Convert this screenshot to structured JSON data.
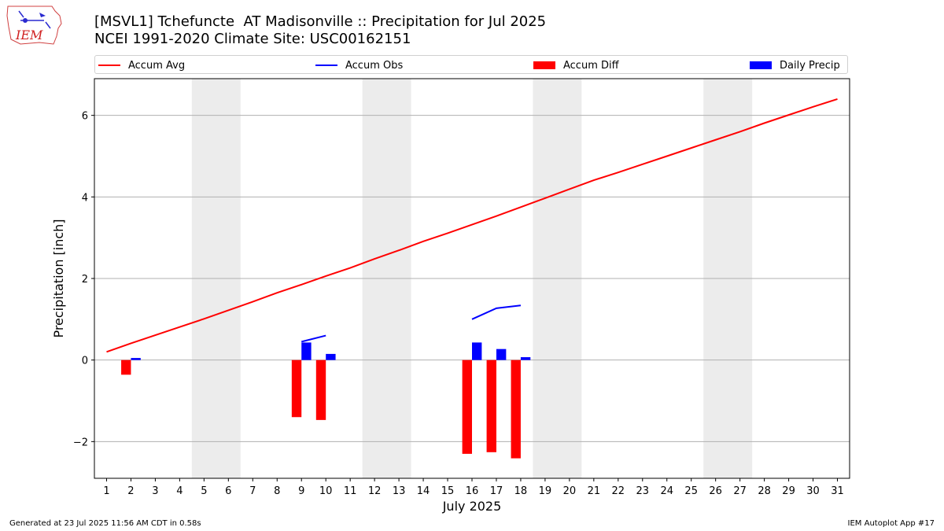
{
  "logo": {
    "text": "IEM"
  },
  "title": {
    "line1": "[MSVL1] Tchefuncte  AT Madisonville :: Precipitation for Jul 2025",
    "line2": "NCEI 1991-2020 Climate Site: USC00162151"
  },
  "legend": {
    "accum_avg": "Accum Avg",
    "accum_obs": "Accum Obs",
    "accum_diff": "Accum Diff",
    "daily_precip": "Daily Precip"
  },
  "footer": {
    "left": "Generated at 23 Jul 2025 11:56 AM CDT in 0.58s",
    "right": "IEM Autoplot App #17"
  },
  "colors": {
    "avg": "#ff0000",
    "obs": "#0000ff",
    "diff": "#ff0000",
    "daily": "#0000ff",
    "weekend": "#ececec",
    "grid": "#b0b0b0"
  },
  "chart_data": {
    "type": "bar",
    "xlabel": "July 2025",
    "ylabel": "Precipitation [inch]",
    "xlim": [
      0.5,
      31.5
    ],
    "ylim": [
      -2.9,
      6.9
    ],
    "yticks": [
      -2,
      0,
      2,
      4,
      6
    ],
    "ytick_labels": [
      "−2",
      "0",
      "2",
      "4",
      "6"
    ],
    "days": [
      1,
      2,
      3,
      4,
      5,
      6,
      7,
      8,
      9,
      10,
      11,
      12,
      13,
      14,
      15,
      16,
      17,
      18,
      19,
      20,
      21,
      22,
      23,
      24,
      25,
      26,
      27,
      28,
      29,
      30,
      31
    ],
    "weekend_spans": [
      [
        4.5,
        6.5
      ],
      [
        11.5,
        13.5
      ],
      [
        18.5,
        20.5
      ],
      [
        25.5,
        27.5
      ]
    ],
    "accum_avg": [
      0.2,
      0.41,
      0.61,
      0.81,
      1.01,
      1.22,
      1.43,
      1.65,
      1.85,
      2.06,
      2.26,
      2.48,
      2.69,
      2.91,
      3.11,
      3.32,
      3.53,
      3.75,
      3.97,
      4.19,
      4.41,
      4.6,
      4.8,
      5.0,
      5.2,
      5.4,
      5.6,
      5.81,
      6.01,
      6.21,
      6.4
    ],
    "accum_obs": [
      {
        "days": [
          9,
          10
        ],
        "values": [
          0.45,
          0.6
        ]
      },
      {
        "days": [
          16,
          17,
          18
        ],
        "values": [
          1.0,
          1.27,
          1.34
        ]
      }
    ],
    "accum_diff": [
      {
        "day": 2,
        "value": -0.36
      },
      {
        "day": 9,
        "value": -1.4
      },
      {
        "day": 10,
        "value": -1.47
      },
      {
        "day": 16,
        "value": -2.3
      },
      {
        "day": 17,
        "value": -2.26
      },
      {
        "day": 18,
        "value": -2.41
      }
    ],
    "daily_precip": [
      {
        "day": 2,
        "value": 0.05
      },
      {
        "day": 9,
        "value": 0.43
      },
      {
        "day": 10,
        "value": 0.15
      },
      {
        "day": 16,
        "value": 0.43
      },
      {
        "day": 17,
        "value": 0.27
      },
      {
        "day": 18,
        "value": 0.07
      }
    ]
  }
}
